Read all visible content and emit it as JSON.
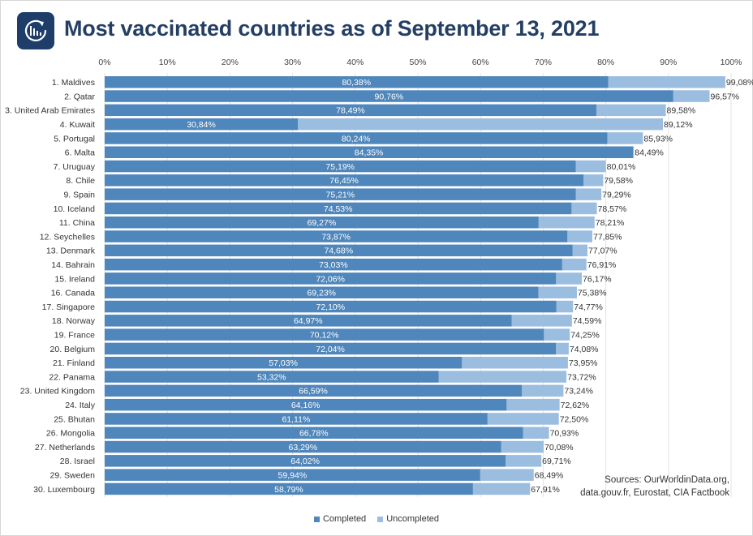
{
  "title": "Most vaccinated countries as of September 13, 2021",
  "sources": [
    "Sources: OurWorldinData.org,",
    "data.gouv.fr, Eurostat, CIA Factbook"
  ],
  "colors": {
    "completed": "#4f86bb",
    "uncompleted": "#9bbde0",
    "grid": "#e3e3e3",
    "logo_bg": "#1e3d68"
  },
  "logo_icon": "bar-chart-refresh-icon",
  "chart_data": {
    "type": "bar",
    "orientation": "horizontal",
    "stacked": true,
    "categories": [
      "1. Maldives",
      "2. Qatar",
      "3. United Arab Emirates",
      "4. Kuwait",
      "5. Portugal",
      "6. Malta",
      "7. Uruguay",
      "8. Chile",
      "9. Spain",
      "10. Iceland",
      "11. China",
      "12. Seychelles",
      "13. Denmark",
      "14. Bahrain",
      "15. Ireland",
      "16. Canada",
      "17. Singapore",
      "18. Norway",
      "19. France",
      "20. Belgium",
      "21. Finland",
      "22. Panama",
      "23. United Kingdom",
      "24. Italy",
      "25. Bhutan",
      "26. Mongolia",
      "27. Netherlands",
      "28. Israel",
      "29. Sweden",
      "30. Luxembourg"
    ],
    "completed": [
      80.38,
      90.76,
      78.49,
      30.84,
      80.24,
      84.35,
      75.19,
      76.45,
      75.21,
      74.53,
      69.27,
      73.87,
      74.68,
      73.03,
      72.06,
      69.23,
      72.1,
      64.97,
      70.12,
      72.04,
      57.03,
      53.32,
      66.59,
      64.16,
      61.11,
      66.78,
      63.29,
      64.02,
      59.94,
      58.79
    ],
    "completed_labels": [
      "80,38%",
      "90,76%",
      "78,49%",
      "30,84%",
      "80,24%",
      "84,35%",
      "75,19%",
      "76,45%",
      "75,21%",
      "74,53%",
      "69,27%",
      "73,87%",
      "74,68%",
      "73,03%",
      "72,06%",
      "69,23%",
      "72,10%",
      "64,97%",
      "70,12%",
      "72,04%",
      "57,03%",
      "53,32%",
      "66,59%",
      "64,16%",
      "61,11%",
      "66,78%",
      "63,29%",
      "64,02%",
      "59,94%",
      "58,79%"
    ],
    "total": [
      99.08,
      96.57,
      89.58,
      89.12,
      85.93,
      84.49,
      80.01,
      79.58,
      79.29,
      78.57,
      78.21,
      77.85,
      77.07,
      76.91,
      76.17,
      75.38,
      74.77,
      74.59,
      74.25,
      74.08,
      73.95,
      73.72,
      73.24,
      72.62,
      72.5,
      70.93,
      70.08,
      69.71,
      68.49,
      67.91
    ],
    "total_labels": [
      "99,08%",
      "96,57%",
      "89,58%",
      "89,12%",
      "85,93%",
      "84,49%",
      "80,01%",
      "79,58%",
      "79,29%",
      "78,57%",
      "78,21%",
      "77,85%",
      "77,07%",
      "76,91%",
      "76,17%",
      "75,38%",
      "74,77%",
      "74,59%",
      "74,25%",
      "74,08%",
      "73,95%",
      "73,72%",
      "73,24%",
      "72,62%",
      "72,50%",
      "70,93%",
      "70,08%",
      "69,71%",
      "68,49%",
      "67,91%"
    ],
    "xlim": [
      0,
      100
    ],
    "x_ticks": [
      "0%",
      "10%",
      "20%",
      "30%",
      "40%",
      "50%",
      "60%",
      "70%",
      "80%",
      "90%",
      "100%"
    ],
    "series": [
      {
        "name": "Completed"
      },
      {
        "name": "Uncompleted"
      }
    ],
    "legend_position": "bottom",
    "grid": true
  }
}
